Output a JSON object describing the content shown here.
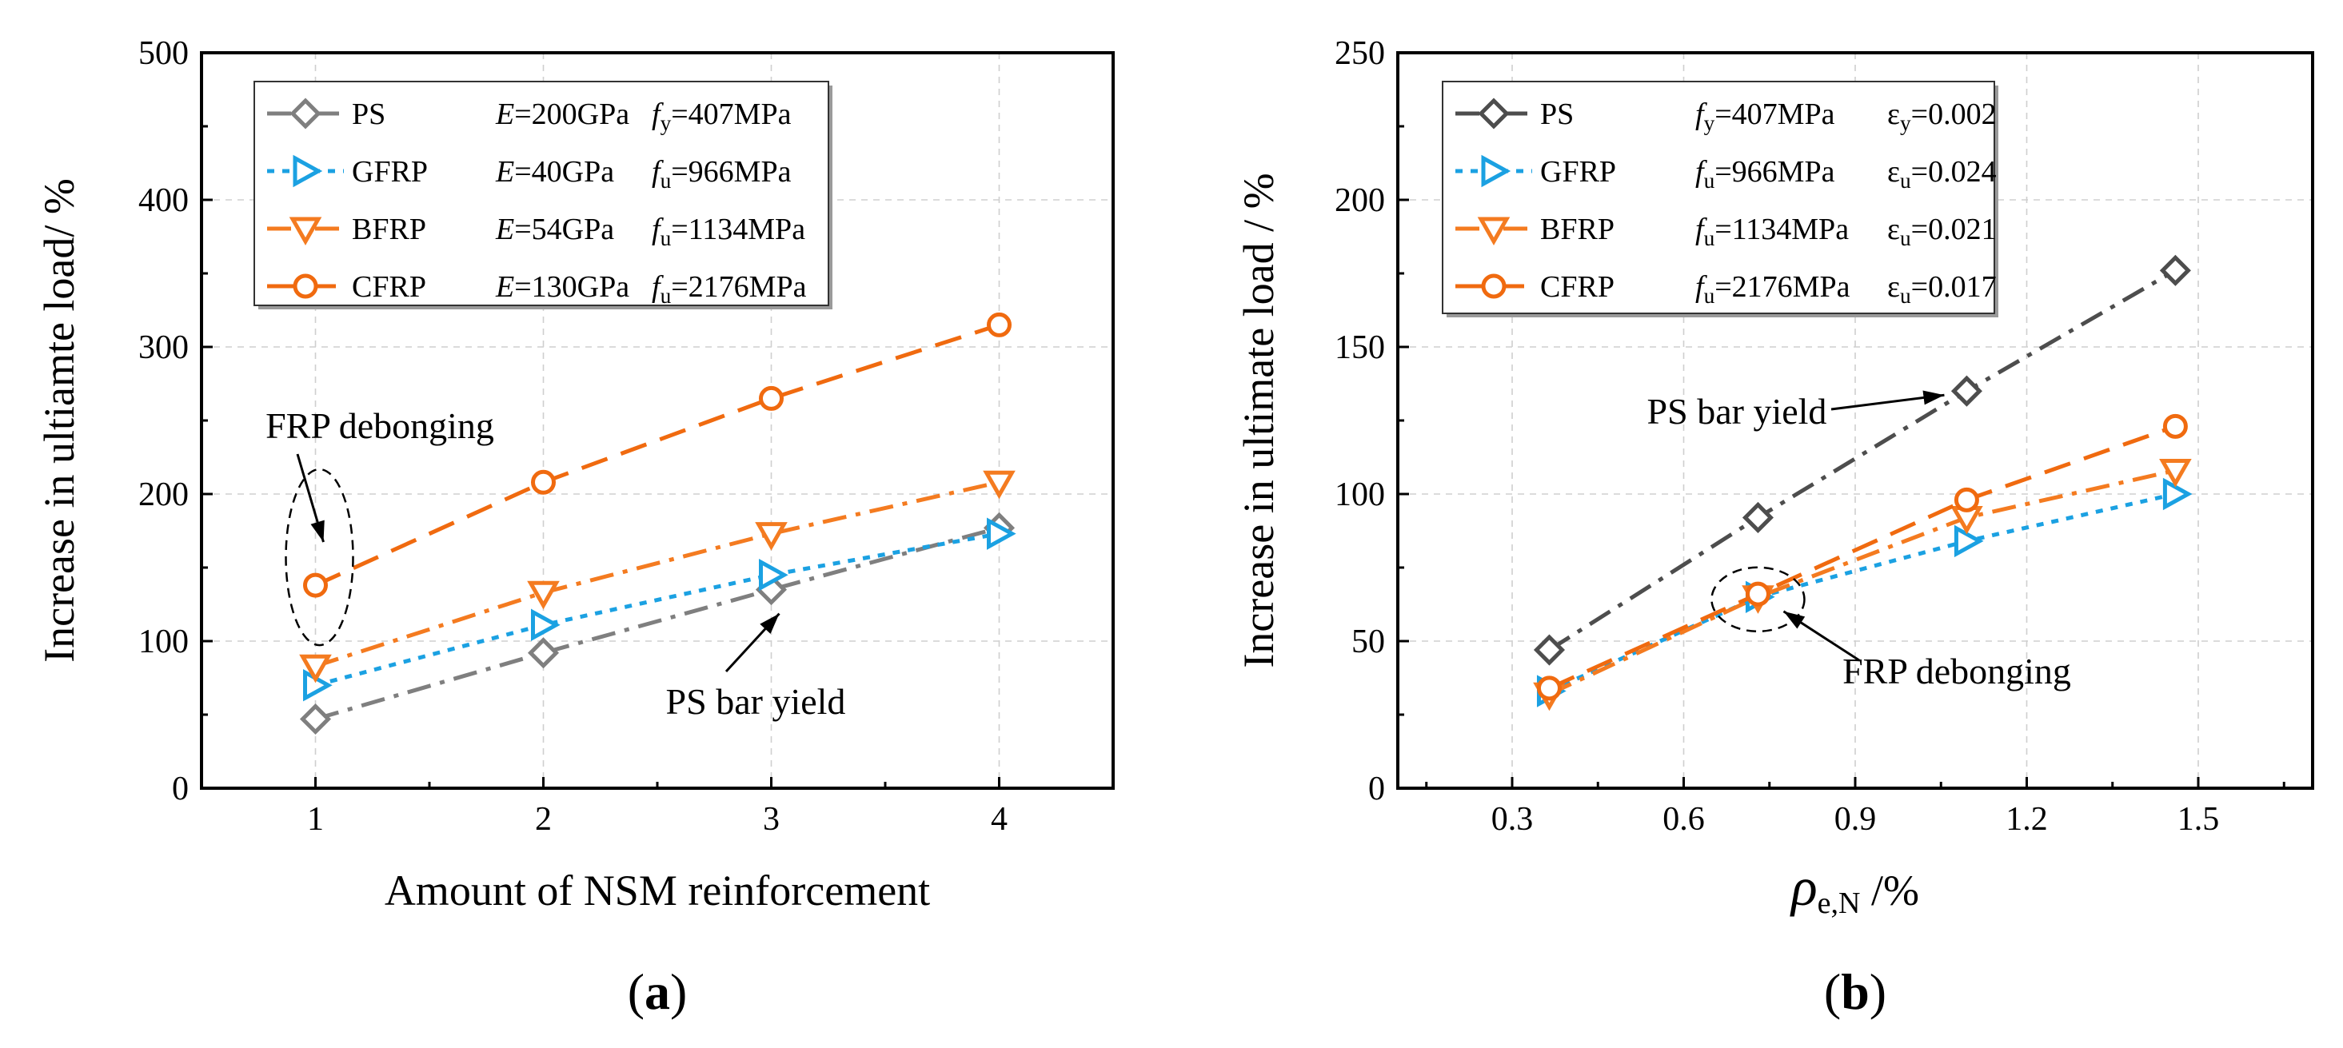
{
  "chart_data": [
    {
      "type": "line",
      "panel_label": "a",
      "xlabel": "Amount of NSM reinforcement",
      "ylabel": "Increase in ultiamte load/ %",
      "xlim": [
        0.5,
        4.5
      ],
      "ylim": [
        0,
        500
      ],
      "xticks": [
        1,
        2,
        3,
        4
      ],
      "yticks": [
        0,
        100,
        200,
        300,
        400,
        500
      ],
      "grid": true,
      "legend_position": "top-left",
      "series": [
        {
          "name": "PS",
          "x": [
            1,
            2,
            3,
            4
          ],
          "values": [
            47,
            92,
            135,
            177
          ],
          "color": "#7f7f7f",
          "marker": "diamond",
          "dash": "dashdot",
          "legend_props": [
            {
              "sym": "E",
              "sub": "",
              "val": "=200GPa"
            },
            {
              "sym": "f",
              "sub": "y",
              "val": "=407MPa"
            }
          ]
        },
        {
          "name": "GFRP",
          "x": [
            1,
            2,
            3,
            4
          ],
          "values": [
            70,
            111,
            145,
            173
          ],
          "color": "#1ba1e2",
          "marker": "triangle-right",
          "dash": "dot",
          "legend_props": [
            {
              "sym": "E",
              "sub": "",
              "val": "=40GPa"
            },
            {
              "sym": "f",
              "sub": "u",
              "val": "=966MPa"
            }
          ]
        },
        {
          "name": "BFRP",
          "x": [
            1,
            2,
            3,
            4
          ],
          "values": [
            83,
            133,
            173,
            208
          ],
          "color": "#f47b20",
          "marker": "triangle-down",
          "dash": "dashdot",
          "legend_props": [
            {
              "sym": "E",
              "sub": "",
              "val": "=54GPa"
            },
            {
              "sym": "f",
              "sub": "u",
              "val": "=1134MPa"
            }
          ]
        },
        {
          "name": "CFRP",
          "x": [
            1,
            2,
            3,
            4
          ],
          "values": [
            138,
            208,
            265,
            315
          ],
          "color": "#f06a0f",
          "marker": "circle",
          "dash": "dash",
          "legend_props": [
            {
              "sym": "E",
              "sub": "",
              "val": "=130GPa"
            },
            {
              "sym": "f",
              "sub": "u",
              "val": "=2176MPa"
            }
          ]
        }
      ],
      "annotations": [
        {
          "text": "FRP debonging",
          "target": [
            1,
            138
          ]
        },
        {
          "text": "PS bar yield",
          "target": [
            3,
            135
          ]
        }
      ]
    },
    {
      "type": "line",
      "panel_label": "b",
      "xlabel_symbol": "ρ",
      "xlabel_sub": "e,N",
      "xlabel_suffix": " /%",
      "ylabel": "Increase in ultimate load / %",
      "xlim": [
        0.1,
        1.7
      ],
      "ylim": [
        0,
        250
      ],
      "xticks": [
        0.3,
        0.6,
        0.9,
        1.2,
        1.5
      ],
      "xtick_labels": [
        "0.3",
        "0.6",
        "0.9",
        "1.2",
        "1.5"
      ],
      "yticks": [
        0,
        50,
        100,
        150,
        200,
        250
      ],
      "grid": true,
      "legend_position": "top-left",
      "series": [
        {
          "name": "PS",
          "x": [
            0.365,
            0.73,
            1.095,
            1.46
          ],
          "values": [
            47,
            92,
            135,
            176
          ],
          "color": "#4d4d4d",
          "marker": "diamond",
          "dash": "dashdot",
          "legend_props": [
            {
              "sym": "f",
              "sub": "y",
              "val": "=407MPa"
            },
            {
              "sym": "ε",
              "sub": "y",
              "val": "=0.002"
            }
          ]
        },
        {
          "name": "GFRP",
          "x": [
            0.365,
            0.73,
            1.095,
            1.46
          ],
          "values": [
            33,
            65,
            84,
            100
          ],
          "color": "#1ba1e2",
          "marker": "triangle-right",
          "dash": "dot",
          "legend_props": [
            {
              "sym": "f",
              "sub": "u",
              "val": "=966MPa"
            },
            {
              "sym": "ε",
              "sub": "u",
              "val": "=0.024"
            }
          ]
        },
        {
          "name": "BFRP",
          "x": [
            0.365,
            0.73,
            1.095,
            1.46
          ],
          "values": [
            32,
            65,
            92,
            108
          ],
          "color": "#f47b20",
          "marker": "triangle-down",
          "dash": "dashdot",
          "legend_props": [
            {
              "sym": "f",
              "sub": "u",
              "val": "=1134MPa"
            },
            {
              "sym": "ε",
              "sub": "u",
              "val": "=0.021"
            }
          ]
        },
        {
          "name": "CFRP",
          "x": [
            0.365,
            0.73,
            1.095,
            1.46
          ],
          "values": [
            34,
            66,
            98,
            123
          ],
          "color": "#f06a0f",
          "marker": "circle",
          "dash": "dash",
          "legend_props": [
            {
              "sym": "f",
              "sub": "u",
              "val": "=2176MPa"
            },
            {
              "sym": "ε",
              "sub": "u",
              "val": "=0.017"
            }
          ]
        }
      ],
      "annotations": [
        {
          "text": "PS bar yield",
          "target": [
            1.095,
            135
          ]
        },
        {
          "text": "FRP debonging",
          "target": [
            0.73,
            65
          ]
        }
      ]
    }
  ]
}
